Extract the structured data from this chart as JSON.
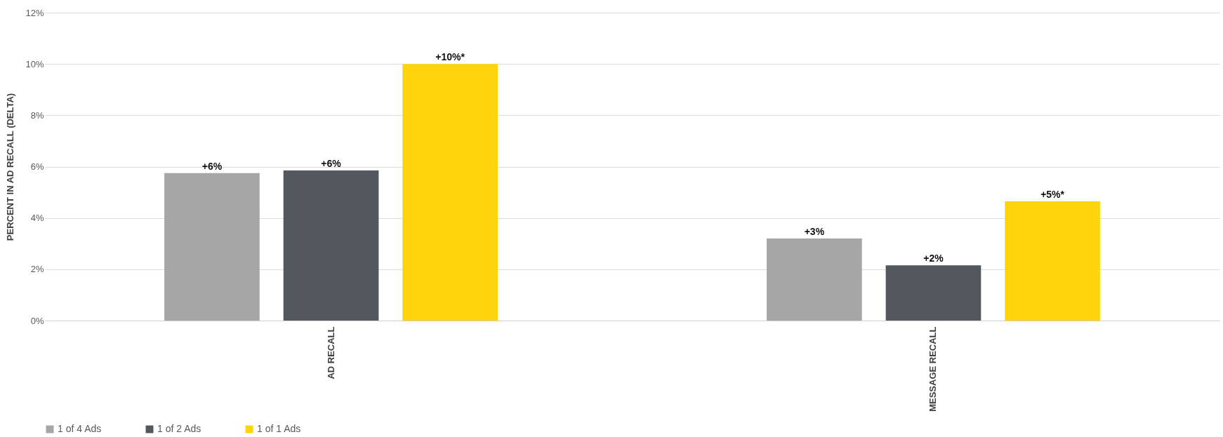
{
  "chart_data": {
    "type": "bar",
    "ylabel": "PERCENT IN AD RECALL (DELTA)",
    "categories": [
      "AD RECALL",
      "MESSAGE RECALL"
    ],
    "series": [
      {
        "name": "1 of 4 Ads",
        "color": "#a6a6a6",
        "values": [
          5.75,
          3.2
        ],
        "value_labels": [
          "+6%",
          "+3%"
        ]
      },
      {
        "name": "1 of 2 Ads",
        "color": "#53575e",
        "values": [
          5.85,
          2.15
        ],
        "value_labels": [
          "+6%",
          "+2%"
        ]
      },
      {
        "name": "1 of 1 Ads",
        "color": "#ffd40a",
        "values": [
          10.0,
          4.65
        ],
        "value_labels": [
          "+10%*",
          "+5%*"
        ]
      }
    ],
    "ylim": [
      0,
      12
    ],
    "yticks": [
      {
        "value": 0,
        "label": "0%"
      },
      {
        "value": 2,
        "label": "2%"
      },
      {
        "value": 4,
        "label": "4%"
      },
      {
        "value": 6,
        "label": "6%"
      },
      {
        "value": 8,
        "label": "8%"
      },
      {
        "value": 10,
        "label": "10%"
      },
      {
        "value": 12,
        "label": "12%"
      }
    ],
    "grid": "y",
    "legend": "bottom"
  }
}
